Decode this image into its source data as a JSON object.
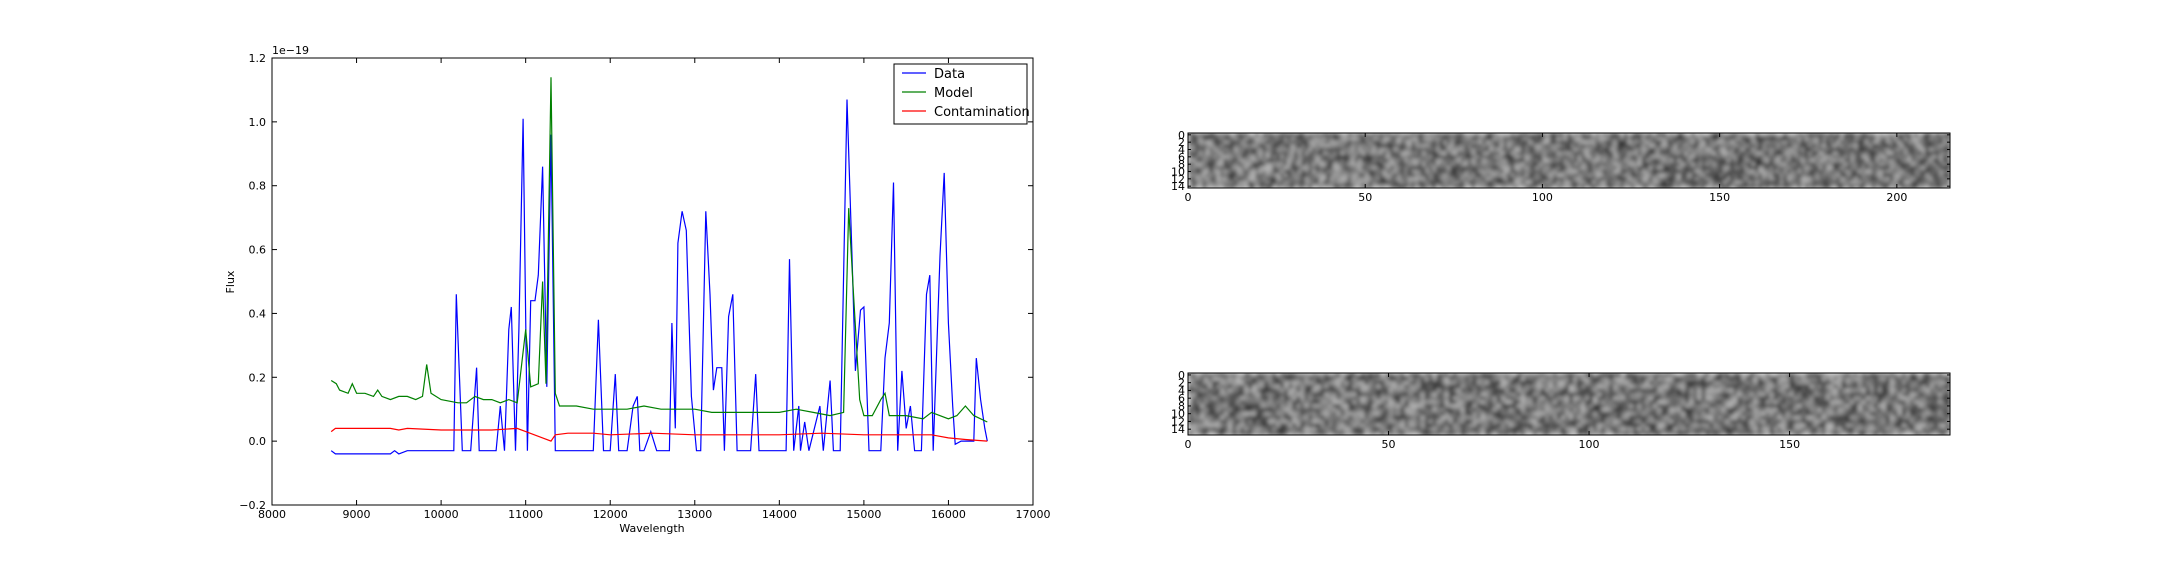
{
  "chart_data": [
    {
      "type": "line",
      "title": "",
      "xlabel": "Wavelength",
      "ylabel": "Flux",
      "offset_text": "1e−19",
      "xlim": [
        8000,
        17000
      ],
      "ylim": [
        -0.2,
        1.2
      ],
      "grid": false,
      "legend_placement": "top-right",
      "x_ticks": [
        8000,
        9000,
        10000,
        11000,
        12000,
        13000,
        14000,
        15000,
        16000,
        17000
      ],
      "x_tick_labels": [
        "8000",
        "9000",
        "10000",
        "11000",
        "12000",
        "13000",
        "14000",
        "15000",
        "16000",
        "17000"
      ],
      "y_ticks": [
        -0.2,
        0.0,
        0.2,
        0.4,
        0.6,
        0.8,
        1.0,
        1.2
      ],
      "y_tick_labels": [
        "−0.2",
        "0.0",
        "0.2",
        "0.4",
        "0.6",
        "0.8",
        "1.0",
        "1.2"
      ],
      "series": [
        {
          "name": "Data",
          "color": "#0000ff",
          "points": [
            [
              8700,
              -0.03
            ],
            [
              8750,
              -0.04
            ],
            [
              9000,
              -0.04
            ],
            [
              9400,
              -0.04
            ],
            [
              9450,
              -0.03
            ],
            [
              9500,
              -0.04
            ],
            [
              9600,
              -0.03
            ],
            [
              10000,
              -0.03
            ],
            [
              10150,
              -0.03
            ],
            [
              10180,
              0.46
            ],
            [
              10250,
              -0.03
            ],
            [
              10350,
              -0.03
            ],
            [
              10420,
              0.23
            ],
            [
              10450,
              -0.03
            ],
            [
              10650,
              -0.03
            ],
            [
              10700,
              0.11
            ],
            [
              10750,
              -0.03
            ],
            [
              10800,
              0.35
            ],
            [
              10830,
              0.42
            ],
            [
              10880,
              -0.03
            ],
            [
              10920,
              0.35
            ],
            [
              10970,
              1.01
            ],
            [
              11020,
              -0.03
            ],
            [
              11060,
              0.44
            ],
            [
              11110,
              0.44
            ],
            [
              11150,
              0.52
            ],
            [
              11200,
              0.86
            ],
            [
              11250,
              0.17
            ],
            [
              11300,
              0.96
            ],
            [
              11350,
              -0.03
            ],
            [
              11800,
              -0.03
            ],
            [
              11860,
              0.38
            ],
            [
              11920,
              -0.03
            ],
            [
              12000,
              -0.03
            ],
            [
              12060,
              0.21
            ],
            [
              12100,
              -0.03
            ],
            [
              12200,
              -0.03
            ],
            [
              12270,
              0.11
            ],
            [
              12320,
              0.14
            ],
            [
              12350,
              -0.03
            ],
            [
              12400,
              -0.03
            ],
            [
              12480,
              0.03
            ],
            [
              12550,
              -0.03
            ],
            [
              12700,
              -0.03
            ],
            [
              12730,
              0.37
            ],
            [
              12770,
              0.04
            ],
            [
              12800,
              0.62
            ],
            [
              12850,
              0.72
            ],
            [
              12900,
              0.66
            ],
            [
              12960,
              0.14
            ],
            [
              13020,
              -0.03
            ],
            [
              13070,
              -0.03
            ],
            [
              13130,
              0.72
            ],
            [
              13180,
              0.46
            ],
            [
              13220,
              0.16
            ],
            [
              13260,
              0.23
            ],
            [
              13320,
              0.23
            ],
            [
              13350,
              -0.03
            ],
            [
              13400,
              0.39
            ],
            [
              13450,
              0.46
            ],
            [
              13500,
              -0.03
            ],
            [
              13660,
              -0.03
            ],
            [
              13720,
              0.21
            ],
            [
              13760,
              -0.03
            ],
            [
              14000,
              -0.03
            ],
            [
              14080,
              -0.03
            ],
            [
              14120,
              0.57
            ],
            [
              14170,
              -0.03
            ],
            [
              14230,
              0.11
            ],
            [
              14250,
              -0.03
            ],
            [
              14300,
              0.06
            ],
            [
              14350,
              -0.03
            ],
            [
              14480,
              0.11
            ],
            [
              14520,
              -0.03
            ],
            [
              14600,
              0.19
            ],
            [
              14640,
              -0.03
            ],
            [
              14720,
              -0.03
            ],
            [
              14800,
              1.07
            ],
            [
              14860,
              0.57
            ],
            [
              14900,
              0.22
            ],
            [
              14960,
              0.41
            ],
            [
              15000,
              0.42
            ],
            [
              15060,
              -0.03
            ],
            [
              15200,
              -0.03
            ],
            [
              15250,
              0.26
            ],
            [
              15300,
              0.37
            ],
            [
              15350,
              0.81
            ],
            [
              15400,
              -0.03
            ],
            [
              15450,
              0.22
            ],
            [
              15500,
              0.04
            ],
            [
              15550,
              0.11
            ],
            [
              15600,
              -0.03
            ],
            [
              15680,
              -0.03
            ],
            [
              15740,
              0.46
            ],
            [
              15780,
              0.52
            ],
            [
              15820,
              -0.03
            ],
            [
              15900,
              0.58
            ],
            [
              15950,
              0.84
            ],
            [
              16000,
              0.37
            ],
            [
              16050,
              0.11
            ],
            [
              16080,
              -0.01
            ],
            [
              16150,
              0.0
            ],
            [
              16300,
              0.0
            ],
            [
              16330,
              0.26
            ],
            [
              16380,
              0.13
            ],
            [
              16430,
              0.04
            ],
            [
              16460,
              0.0
            ]
          ]
        },
        {
          "name": "Model",
          "color": "#008000",
          "points": [
            [
              8700,
              0.19
            ],
            [
              8760,
              0.18
            ],
            [
              8800,
              0.16
            ],
            [
              8900,
              0.15
            ],
            [
              8950,
              0.18
            ],
            [
              9000,
              0.15
            ],
            [
              9100,
              0.15
            ],
            [
              9200,
              0.14
            ],
            [
              9250,
              0.16
            ],
            [
              9300,
              0.14
            ],
            [
              9400,
              0.13
            ],
            [
              9500,
              0.14
            ],
            [
              9600,
              0.14
            ],
            [
              9700,
              0.13
            ],
            [
              9780,
              0.14
            ],
            [
              9830,
              0.24
            ],
            [
              9880,
              0.15
            ],
            [
              10000,
              0.13
            ],
            [
              10200,
              0.12
            ],
            [
              10300,
              0.12
            ],
            [
              10400,
              0.14
            ],
            [
              10500,
              0.13
            ],
            [
              10600,
              0.13
            ],
            [
              10700,
              0.12
            ],
            [
              10800,
              0.13
            ],
            [
              10900,
              0.12
            ],
            [
              11000,
              0.35
            ],
            [
              11060,
              0.17
            ],
            [
              11150,
              0.18
            ],
            [
              11200,
              0.5
            ],
            [
              11240,
              0.18
            ],
            [
              11300,
              1.14
            ],
            [
              11350,
              0.15
            ],
            [
              11400,
              0.11
            ],
            [
              11600,
              0.11
            ],
            [
              11800,
              0.1
            ],
            [
              12000,
              0.1
            ],
            [
              12200,
              0.1
            ],
            [
              12400,
              0.11
            ],
            [
              12600,
              0.1
            ],
            [
              12800,
              0.1
            ],
            [
              13000,
              0.1
            ],
            [
              13200,
              0.09
            ],
            [
              13400,
              0.09
            ],
            [
              13600,
              0.09
            ],
            [
              13800,
              0.09
            ],
            [
              14000,
              0.09
            ],
            [
              14200,
              0.1
            ],
            [
              14400,
              0.09
            ],
            [
              14600,
              0.08
            ],
            [
              14760,
              0.09
            ],
            [
              14820,
              0.73
            ],
            [
              14880,
              0.45
            ],
            [
              14950,
              0.13
            ],
            [
              15000,
              0.08
            ],
            [
              15100,
              0.08
            ],
            [
              15200,
              0.13
            ],
            [
              15250,
              0.15
            ],
            [
              15300,
              0.08
            ],
            [
              15500,
              0.08
            ],
            [
              15700,
              0.07
            ],
            [
              15800,
              0.09
            ],
            [
              16000,
              0.07
            ],
            [
              16100,
              0.08
            ],
            [
              16200,
              0.11
            ],
            [
              16300,
              0.08
            ],
            [
              16460,
              0.06
            ]
          ]
        },
        {
          "name": "Contamination",
          "color": "#ff0000",
          "points": [
            [
              8700,
              0.03
            ],
            [
              8750,
              0.04
            ],
            [
              9000,
              0.04
            ],
            [
              9200,
              0.04
            ],
            [
              9400,
              0.04
            ],
            [
              9500,
              0.035
            ],
            [
              9600,
              0.04
            ],
            [
              10000,
              0.035
            ],
            [
              10300,
              0.035
            ],
            [
              10600,
              0.035
            ],
            [
              10900,
              0.04
            ],
            [
              11000,
              0.03
            ],
            [
              11200,
              0.01
            ],
            [
              11300,
              0.0
            ],
            [
              11350,
              0.02
            ],
            [
              11500,
              0.025
            ],
            [
              11800,
              0.025
            ],
            [
              12000,
              0.02
            ],
            [
              12500,
              0.025
            ],
            [
              13000,
              0.02
            ],
            [
              13500,
              0.02
            ],
            [
              14000,
              0.02
            ],
            [
              14500,
              0.025
            ],
            [
              15000,
              0.02
            ],
            [
              15500,
              0.02
            ],
            [
              15800,
              0.02
            ],
            [
              16000,
              0.01
            ],
            [
              16200,
              0.005
            ],
            [
              16460,
              0.0
            ]
          ]
        }
      ]
    },
    {
      "type": "heatmap",
      "colormap": "gray",
      "xlim": [
        0,
        215
      ],
      "ylim": [
        15,
        0
      ],
      "x_ticks": [
        0,
        50,
        100,
        150,
        200
      ],
      "x_tick_labels": [
        "0",
        "50",
        "100",
        "150",
        "200"
      ],
      "y_tick_labels": [
        "0",
        "2",
        "4",
        "6",
        "8",
        "10",
        "12",
        "14"
      ]
    },
    {
      "type": "heatmap",
      "colormap": "gray",
      "xlim": [
        0,
        190
      ],
      "ylim": [
        16,
        0
      ],
      "x_ticks": [
        0,
        50,
        100,
        150
      ],
      "x_tick_labels": [
        "0",
        "50",
        "100",
        "150"
      ],
      "y_tick_labels": [
        "0",
        "2",
        "4",
        "6",
        "8",
        "10",
        "12",
        "14"
      ]
    }
  ]
}
